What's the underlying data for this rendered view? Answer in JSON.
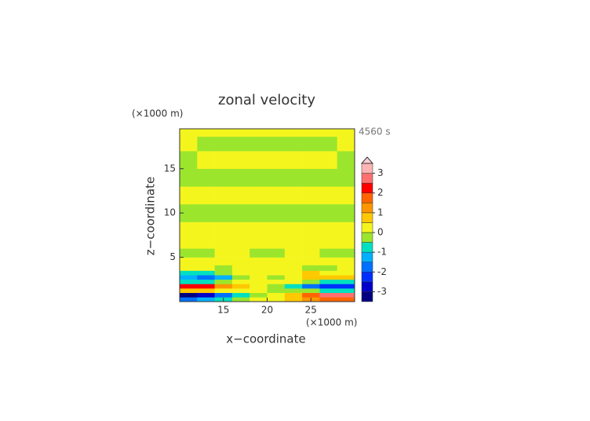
{
  "chart_data": {
    "type": "contour",
    "title": "zonal velocity",
    "time_label": "4560 s",
    "x_label": "x−coordinate",
    "y_label": "z−coordinate",
    "x_unit": "(×1000 m)",
    "y_unit": "(×1000 m)",
    "xlim": [
      10,
      30
    ],
    "ylim": [
      0,
      19.5
    ],
    "xticks": [
      15,
      20,
      25
    ],
    "yticks": [
      5,
      10,
      15
    ],
    "x": [
      11,
      13,
      15,
      17,
      19,
      21,
      23,
      25,
      27,
      29
    ],
    "z": [
      0.25,
      0.75,
      1.25,
      1.75,
      2.25,
      2.75,
      3.25,
      3.75,
      4.5,
      5.5,
      6.5,
      8,
      10,
      12,
      14,
      16,
      18,
      19.25
    ],
    "values": [
      [
        -1.7,
        -1.2,
        -0.7,
        -0.2,
        0.2,
        0.2,
        0.7,
        1.2,
        1.7,
        1.7
      ],
      [
        -3.2,
        -2.7,
        -1.7,
        -0.7,
        -0.2,
        0.2,
        0.7,
        1.7,
        2.7,
        2.7
      ],
      [
        0.7,
        0.7,
        0.2,
        0.2,
        0.2,
        -0.2,
        -0.2,
        -0.2,
        -0.7,
        -0.7
      ],
      [
        2.2,
        2.2,
        1.2,
        0.7,
        0.2,
        -0.2,
        -0.7,
        -1.7,
        -2.2,
        -2.2
      ],
      [
        -0.7,
        -0.7,
        -0.2,
        0.2,
        0.2,
        0.2,
        0.2,
        -0.2,
        -0.7,
        -0.7
      ],
      [
        -1.2,
        -1.7,
        -1.2,
        -0.2,
        0.2,
        -0.2,
        0.2,
        0.7,
        0.7,
        0.7
      ],
      [
        -0.7,
        -0.7,
        -0.2,
        0.2,
        0.2,
        0.2,
        0.2,
        0.7,
        0.2,
        0.2
      ],
      [
        0.2,
        0.2,
        -0.2,
        0.2,
        0.2,
        0.2,
        0.2,
        -0.2,
        -0.2,
        0.2
      ],
      [
        0.2,
        0.2,
        0.2,
        0.2,
        0.2,
        0.2,
        0.2,
        0.2,
        0.2,
        0.2
      ],
      [
        -0.2,
        -0.2,
        0.2,
        0.2,
        -0.2,
        -0.2,
        0.2,
        0.2,
        -0.2,
        -0.2
      ],
      [
        0.2,
        0.2,
        0.2,
        0.2,
        0.2,
        0.2,
        0.2,
        0.2,
        0.2,
        0.2
      ],
      [
        0.2,
        0.2,
        0.2,
        0.2,
        0.2,
        0.2,
        0.2,
        0.2,
        0.2,
        0.2
      ],
      [
        -0.2,
        -0.2,
        -0.2,
        -0.2,
        -0.2,
        -0.2,
        -0.2,
        -0.2,
        -0.2,
        -0.2
      ],
      [
        0.2,
        0.2,
        0.2,
        0.2,
        0.2,
        0.2,
        0.2,
        0.2,
        0.2,
        0.2
      ],
      [
        -0.2,
        -0.2,
        -0.2,
        -0.2,
        -0.2,
        -0.2,
        -0.2,
        -0.2,
        -0.2,
        -0.2
      ],
      [
        -0.2,
        0.2,
        0.2,
        0.2,
        0.2,
        0.2,
        0.2,
        0.2,
        0.2,
        -0.2
      ],
      [
        0.2,
        -0.2,
        -0.2,
        -0.2,
        -0.2,
        -0.2,
        -0.2,
        -0.2,
        -0.2,
        0.2
      ],
      [
        0.2,
        0.2,
        0.2,
        0.2,
        0.2,
        0.2,
        0.2,
        0.2,
        0.2,
        0.2
      ]
    ],
    "levels": [
      -3.5,
      -3,
      -2.5,
      -2,
      -1.5,
      -1,
      -0.5,
      0,
      0.5,
      1,
      1.5,
      2,
      2.5,
      3,
      3.5
    ],
    "colors": [
      "#000080",
      "#0000c8",
      "#0030ff",
      "#0070ff",
      "#00b0ff",
      "#00e0c0",
      "#9be62d",
      "#f5f51e",
      "#ffc800",
      "#ff9600",
      "#ff6400",
      "#ff0000",
      "#ff7070",
      "#ffb4b4"
    ],
    "extend_color": "#ffd0d0",
    "colorbar_ticks": [
      -3,
      -2,
      -1,
      0,
      1,
      2,
      3
    ]
  }
}
